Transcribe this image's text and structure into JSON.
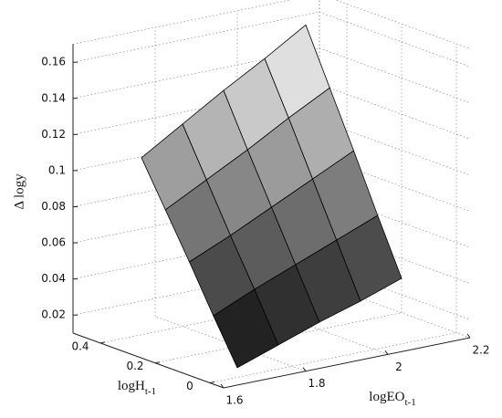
{
  "chart_data": {
    "type": "surface",
    "zlabel": "Δ logy",
    "ylabel": "logH",
    "ylabel_sub": "t-1",
    "xlabel": "logEO",
    "xlabel_sub": "t-1",
    "x": [
      1.7,
      1.8,
      1.9,
      2.0,
      2.1
    ],
    "y": [
      0.05,
      0.1375,
      0.225,
      0.3125,
      0.4
    ],
    "z": [
      [
        0.011,
        0.019,
        0.027,
        0.034,
        0.042
      ],
      [
        0.035,
        0.045,
        0.054,
        0.063,
        0.072
      ],
      [
        0.06,
        0.07,
        0.081,
        0.092,
        0.103
      ],
      [
        0.084,
        0.096,
        0.108,
        0.121,
        0.133
      ],
      [
        0.108,
        0.122,
        0.136,
        0.149,
        0.163
      ]
    ],
    "colormap": "gray",
    "xlim": [
      1.6,
      2.2
    ],
    "xticks": [
      1.6,
      1.8,
      2,
      2.2
    ],
    "ylim": [
      -0.05,
      0.5
    ],
    "yticks": [
      0,
      0.2,
      0.4
    ],
    "zlim": [
      0.01,
      0.17
    ],
    "zticks": [
      0.02,
      0.04,
      0.06,
      0.08,
      0.1,
      0.12,
      0.14,
      0.16
    ],
    "grid": true
  }
}
